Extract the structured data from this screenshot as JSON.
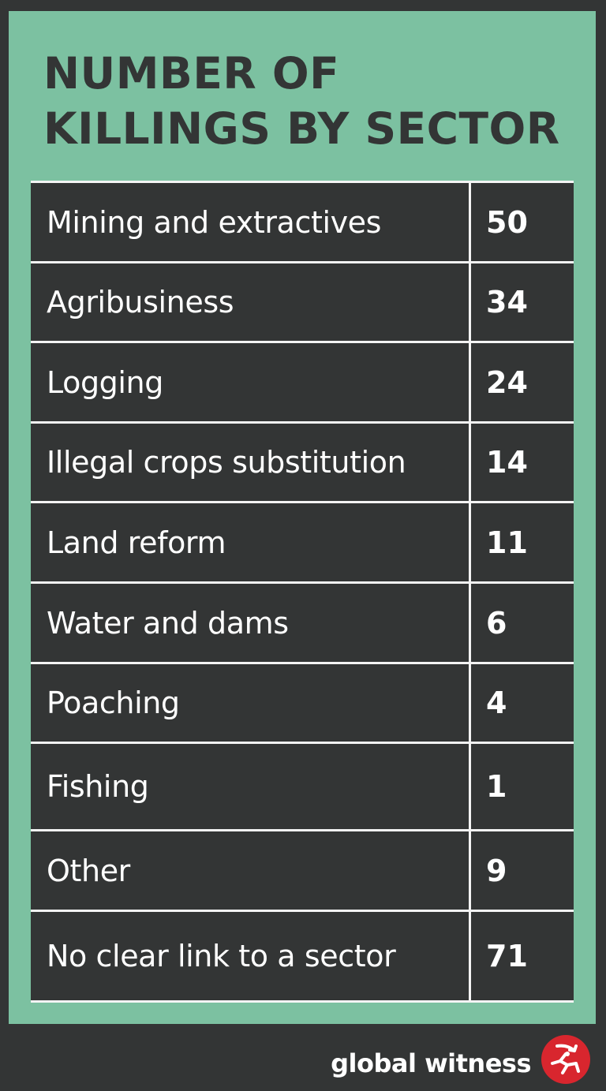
{
  "title_lines": [
    "NUMBER OF",
    "KILLINGS BY SECTOR"
  ],
  "chart_data": {
    "type": "table",
    "title": "NUMBER OF KILLINGS BY SECTOR",
    "categories": [
      "Mining and extractives",
      "Agribusiness",
      "Logging",
      "Illegal crops substitution",
      "Land reform",
      "Water and dams",
      "Poaching",
      "Fishing",
      "Other",
      "No clear link to a sector"
    ],
    "values": [
      50,
      34,
      24,
      14,
      11,
      6,
      4,
      1,
      9,
      71
    ]
  },
  "footer": {
    "brand": "global witness",
    "logo_icon": "global-witness-logo-icon"
  },
  "colors": {
    "panel": "#7cc1a1",
    "dark": "#333535",
    "row_text": "#ffffff",
    "divider": "#f4f4f4",
    "logo_red": "#d8262e"
  }
}
